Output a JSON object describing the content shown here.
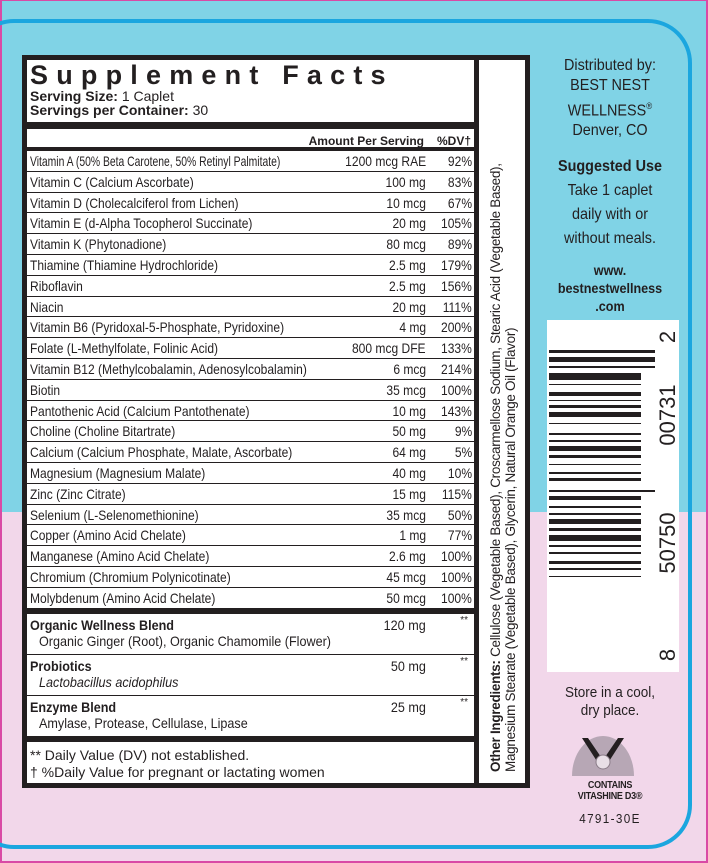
{
  "title": "Supplement Facts",
  "serving_size_label": "Serving Size:",
  "serving_size": "1 Caplet",
  "servings_label": "Servings per Container:",
  "servings": "30",
  "header": {
    "amount": "Amount Per Serving",
    "dv": "%DV†"
  },
  "nutrients": [
    {
      "name": "Vitamin A (50% Beta Carotene, 50% Retinyl Palmitate)",
      "amount": "1200 mcg RAE",
      "dv": "92%"
    },
    {
      "name": "Vitamin C (Calcium Ascorbate)",
      "amount": "100 mg",
      "dv": "83%"
    },
    {
      "name": "Vitamin D (Cholecalciferol from Lichen)",
      "amount": "10 mcg",
      "dv": "67%"
    },
    {
      "name": "Vitamin E (d-Alpha Tocopherol Succinate)",
      "amount": "20 mg",
      "dv": "105%"
    },
    {
      "name": "Vitamin K (Phytonadione)",
      "amount": "80 mcg",
      "dv": "89%"
    },
    {
      "name": "Thiamine (Thiamine Hydrochloride)",
      "amount": "2.5 mg",
      "dv": "179%"
    },
    {
      "name": "Riboflavin",
      "amount": "2.5 mg",
      "dv": "156%"
    },
    {
      "name": "Niacin",
      "amount": "20 mg",
      "dv": "111%"
    },
    {
      "name": "Vitamin B6 (Pyridoxal-5-Phosphate, Pyridoxine)",
      "amount": "4 mg",
      "dv": "200%"
    },
    {
      "name": "Folate (L-Methylfolate, Folinic Acid)",
      "amount": "800 mcg DFE",
      "dv": "133%"
    },
    {
      "name": "Vitamin B12 (Methylcobalamin, Adenosylcobalamin)",
      "amount": "6 mcg",
      "dv": "214%"
    },
    {
      "name": "Biotin",
      "amount": "35 mcg",
      "dv": "100%"
    },
    {
      "name": "Pantothenic Acid (Calcium Pantothenate)",
      "amount": "10 mg",
      "dv": "143%"
    },
    {
      "name": "Choline (Choline Bitartrate)",
      "amount": "50 mg",
      "dv": "9%"
    },
    {
      "name": "Calcium (Calcium Phosphate, Malate, Ascorbate)",
      "amount": "64 mg",
      "dv": "5%"
    },
    {
      "name": "Magnesium (Magnesium Malate)",
      "amount": "40 mg",
      "dv": "10%"
    },
    {
      "name": "Zinc (Zinc Citrate)",
      "amount": "15 mg",
      "dv": "115%"
    },
    {
      "name": "Selenium (L-Selenomethionine)",
      "amount": "35 mcg",
      "dv": "50%"
    },
    {
      "name": "Copper (Amino Acid Chelate)",
      "amount": "1 mg",
      "dv": "77%"
    },
    {
      "name": "Manganese (Amino Acid Chelate)",
      "amount": "2.6 mg",
      "dv": "100%"
    },
    {
      "name": "Chromium (Chromium Polynicotinate)",
      "amount": "45 mcg",
      "dv": "100%"
    },
    {
      "name": "Molybdenum (Amino Acid Chelate)",
      "amount": "50 mcg",
      "dv": "100%"
    }
  ],
  "blends": [
    {
      "name": "Organic Wellness Blend",
      "sub": "Organic Ginger (Root), Organic Chamomile (Flower)",
      "amount": "120 mg",
      "dv": "**",
      "italic": false
    },
    {
      "name": "Probiotics",
      "sub": "Lactobacillus acidophilus",
      "amount": "50 mg",
      "dv": "**",
      "italic": true
    },
    {
      "name": "Enzyme Blend",
      "sub": "Amylase, Protease, Cellulase, Lipase",
      "amount": "25 mg",
      "dv": "**",
      "italic": false
    }
  ],
  "footnotes": [
    "** Daily Value (DV) not established.",
    "† %Daily Value for pregnant or lactating women"
  ],
  "other_ingredients": {
    "label": "Other Ingredients:",
    "line1": " Cellulose (Vegetable Based), Croscarmellose Sodium, Stearic Acid (Vegetable Based),",
    "line2": "Magnesium Stearate (Vegetable Based), Glycerin, Natural Orange Oil (Flavor)"
  },
  "distributor": {
    "label": "Distributed by:",
    "name1": "BEST NEST",
    "name2": "WELLNESS",
    "reg": "®",
    "city": "Denver, CO"
  },
  "suggested_use": {
    "title": "Suggested Use",
    "lines": [
      "Take 1 caplet",
      "daily with or",
      "without meals."
    ]
  },
  "website": [
    "www.",
    "bestnestwellness",
    ".com"
  ],
  "barcode": {
    "digits": [
      "8",
      "50750",
      "00731",
      "2"
    ]
  },
  "storage": [
    "Store in a cool,",
    "dry place."
  ],
  "logo": {
    "line1": "CONTAINS",
    "line2": "VITASHINE D3®"
  },
  "product_code": "4791-30E",
  "colors": {
    "top_bg": "#80d3e6",
    "bottom_bg": "#f2d7ea",
    "frame": "#1ba6df",
    "ink": "#231f20"
  }
}
